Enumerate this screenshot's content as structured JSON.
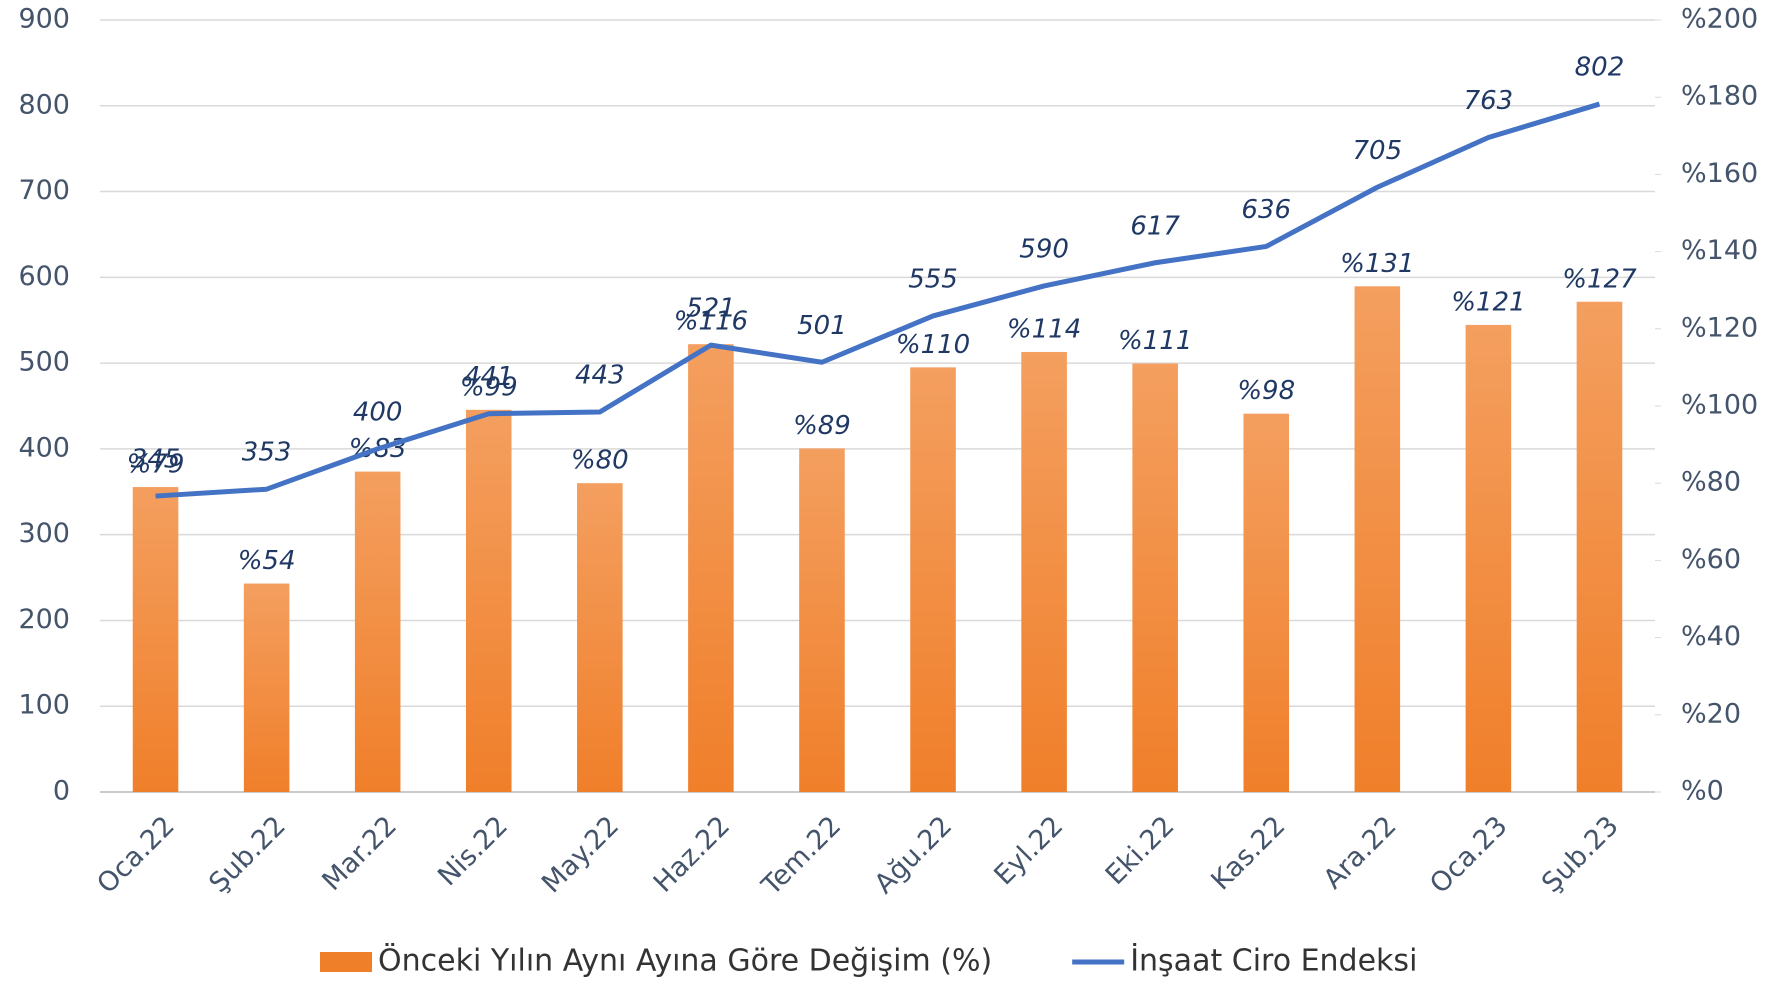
{
  "chart_data": {
    "type": "bar_line",
    "categories": [
      "Oca.22",
      "Şub.22",
      "Mar.22",
      "Nis.22",
      "May.22",
      "Haz.22",
      "Tem.22",
      "Ağu.22",
      "Eyl.22",
      "Eki.22",
      "Kas.22",
      "Ara.22",
      "Oca.23",
      "Şub.23"
    ],
    "series": [
      {
        "name": "Önceki Yılın Aynı Ayına Göre Değişim (%)",
        "color": "#f07f2a",
        "type": "bar",
        "axis": "y2",
        "values": [
          79,
          54,
          83,
          99,
          80,
          116,
          89,
          110,
          114,
          111,
          98,
          131,
          121,
          127
        ],
        "value_labels": [
          "%79",
          "%54",
          "%83",
          "%99",
          "%80",
          "%116",
          "%89",
          "%110",
          "%114",
          "%111",
          "%98",
          "%131",
          "%121",
          "%127"
        ]
      },
      {
        "name": "İnşaat Ciro Endeksi",
        "color": "#4472c4",
        "type": "line",
        "axis": "y",
        "values": [
          345,
          353,
          400,
          441,
          443,
          521,
          501,
          555,
          590,
          617,
          636,
          705,
          763,
          802
        ]
      }
    ],
    "ylim": [
      0,
      900
    ],
    "yticks": [
      0,
      100,
      200,
      300,
      400,
      500,
      600,
      700,
      800,
      900
    ],
    "y2lim": [
      0,
      200
    ],
    "y2ticks": [
      {
        "value": 0,
        "label": "%0"
      },
      {
        "value": 20,
        "label": "%20"
      },
      {
        "value": 40,
        "label": "%40"
      },
      {
        "value": 60,
        "label": "%60"
      },
      {
        "value": 80,
        "label": "%80"
      },
      {
        "value": 100,
        "label": "%100"
      },
      {
        "value": 120,
        "label": "%120"
      },
      {
        "value": 140,
        "label": "%140"
      },
      {
        "value": 160,
        "label": "%160"
      },
      {
        "value": 180,
        "label": "%180"
      },
      {
        "value": 200,
        "label": "%200"
      }
    ],
    "grid": true,
    "legend": "bottom"
  }
}
